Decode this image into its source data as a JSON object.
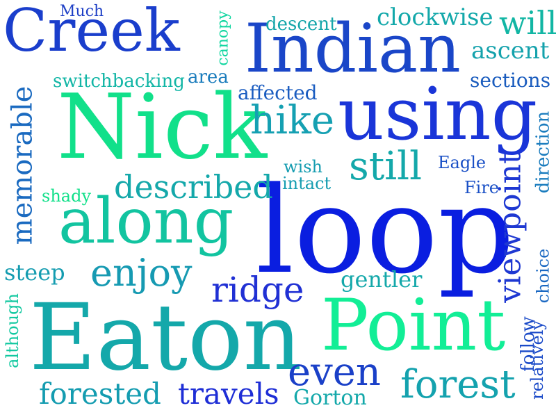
{
  "words": [
    {
      "text": "Creek",
      "color": "#1a3ecc"
    },
    {
      "text": "Indian",
      "color": "#1a46c8"
    },
    {
      "text": "Nick",
      "color": "#11e08a"
    },
    {
      "text": "using",
      "color": "#1a35d8"
    },
    {
      "text": "loop",
      "color": "#0a1ee0"
    },
    {
      "text": "along",
      "color": "#12c4a0"
    },
    {
      "text": "Eaton",
      "color": "#14a8aa"
    },
    {
      "text": "Point",
      "color": "#12ee96"
    },
    {
      "text": "hike",
      "color": "#15a0b2"
    },
    {
      "text": "still",
      "color": "#14a8aa"
    },
    {
      "text": "described",
      "color": "#14a8aa"
    },
    {
      "text": "enjoy",
      "color": "#169ab2"
    },
    {
      "text": "ridge",
      "color": "#2030d4"
    },
    {
      "text": "even",
      "color": "#1a40c8"
    },
    {
      "text": "forest",
      "color": "#14a2ae"
    },
    {
      "text": "forested",
      "color": "#149cb0"
    },
    {
      "text": "travels",
      "color": "#1e2ed6"
    },
    {
      "text": "Gorton",
      "color": "#14a8aa"
    },
    {
      "text": "viewpoint",
      "color": "#1e38d2"
    },
    {
      "text": "memorable",
      "color": "#1a6ac0"
    },
    {
      "text": "Much",
      "color": "#1f40c6"
    },
    {
      "text": "canopy",
      "color": "#11d6a0"
    },
    {
      "text": "descent",
      "color": "#15a6aa"
    },
    {
      "text": "clockwise",
      "color": "#13a8aa"
    },
    {
      "text": "will",
      "color": "#12b6a4"
    },
    {
      "text": "ascent",
      "color": "#14a2ac"
    },
    {
      "text": "switchbacking",
      "color": "#13b6a6"
    },
    {
      "text": "area",
      "color": "#1a7cbc"
    },
    {
      "text": "sections",
      "color": "#1a5cbe"
    },
    {
      "text": "affected",
      "color": "#1a5cc0"
    },
    {
      "text": "direction",
      "color": "#1a7cbe"
    },
    {
      "text": "wish",
      "color": "#149cb0"
    },
    {
      "text": "intact",
      "color": "#149cb0"
    },
    {
      "text": "Eagle",
      "color": "#1a50c6"
    },
    {
      "text": "Fire",
      "color": "#1a50c6"
    },
    {
      "text": "shady",
      "color": "#11e08a"
    },
    {
      "text": "steep",
      "color": "#149cb0"
    },
    {
      "text": "gentler",
      "color": "#14a8aa"
    },
    {
      "text": "choice",
      "color": "#1a68c2"
    },
    {
      "text": "although",
      "color": "#12c8a0"
    },
    {
      "text": "follow",
      "color": "#1a4ac8"
    },
    {
      "text": "relatively",
      "color": "#1a4ac8"
    }
  ]
}
